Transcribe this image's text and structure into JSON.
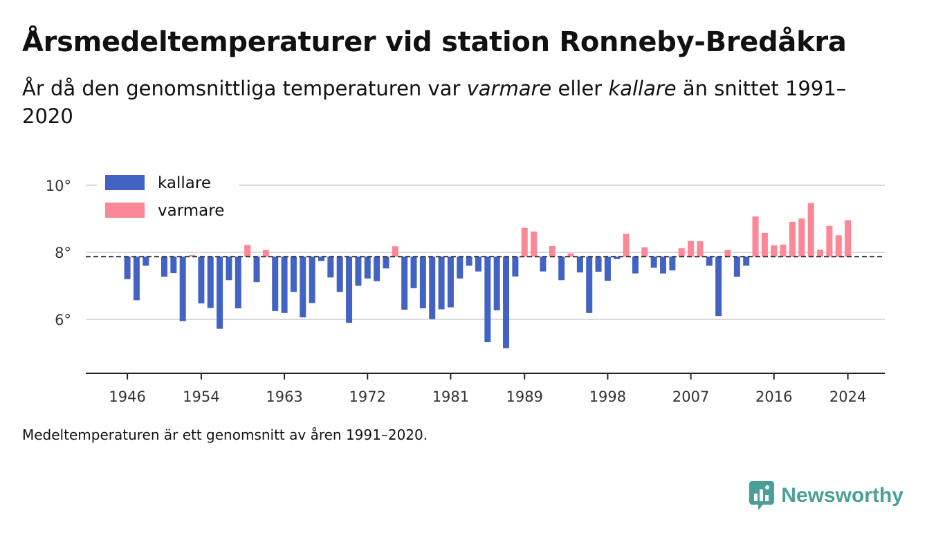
{
  "header": {
    "title": "Årsmedeltemperaturer vid station Ronneby-Bredåkra",
    "subtitle_part1": "År då den genomsnittliga temperaturen var ",
    "subtitle_em1": "varmare",
    "subtitle_part2": " eller ",
    "subtitle_em2": "kallare",
    "subtitle_part3": " än snittet 1991–2020"
  },
  "footnote": "Medeltemperaturen är ett genomsnitt av åren 1991–2020.",
  "brand": {
    "name": "Newsworthy",
    "icon": "bar-chart-speech-bubble-icon"
  },
  "colors": {
    "kallare": "#4263c4",
    "varmare": "#fc8796",
    "grid": "#d9d9d9",
    "brand": "#4a9f96"
  },
  "chart_data": {
    "type": "bar",
    "title": "Årsmedeltemperaturer vid station Ronneby-Bredåkra",
    "xlabel": "",
    "ylabel": "",
    "baseline": 7.87,
    "baseline_style": "dashed",
    "ylim": [
      4.5,
      10
    ],
    "yticks": [
      6,
      8,
      10
    ],
    "ytick_labels": [
      "6°",
      "8°",
      "10°"
    ],
    "xlim": [
      1941.5,
      2028
    ],
    "xticks": [
      1946,
      1954,
      1963,
      1972,
      1981,
      1989,
      1998,
      2007,
      2016,
      2024
    ],
    "grid": true,
    "legend": [
      {
        "key": "kallare",
        "label": "kallare"
      },
      {
        "key": "varmare",
        "label": "varmare"
      }
    ],
    "legend_position": "top-left",
    "years": [
      1946,
      1947,
      1948,
      1949,
      1950,
      1951,
      1952,
      1953,
      1954,
      1955,
      1956,
      1957,
      1958,
      1959,
      1960,
      1961,
      1962,
      1963,
      1964,
      1965,
      1966,
      1967,
      1968,
      1969,
      1970,
      1971,
      1972,
      1973,
      1974,
      1975,
      1976,
      1977,
      1978,
      1979,
      1980,
      1981,
      1982,
      1983,
      1984,
      1985,
      1986,
      1987,
      1988,
      1989,
      1990,
      1991,
      1992,
      1993,
      1994,
      1995,
      1996,
      1997,
      1998,
      1999,
      2000,
      2001,
      2002,
      2003,
      2004,
      2005,
      2006,
      2007,
      2008,
      2009,
      2010,
      2011,
      2012,
      2013,
      2014,
      2015,
      2016,
      2017,
      2018,
      2019,
      2020,
      2021,
      2022,
      2023,
      2024
    ],
    "values": [
      7.2,
      6.57,
      7.6,
      null,
      7.27,
      7.38,
      5.95,
      7.92,
      6.48,
      6.34,
      5.72,
      7.17,
      6.33,
      8.22,
      7.11,
      8.07,
      6.25,
      6.19,
      6.82,
      6.06,
      6.49,
      7.74,
      7.25,
      6.82,
      5.9,
      7.0,
      7.22,
      7.14,
      7.52,
      8.18,
      6.29,
      6.93,
      6.33,
      6.01,
      6.3,
      6.36,
      7.22,
      7.6,
      7.43,
      5.32,
      6.27,
      5.14,
      7.28,
      8.73,
      8.62,
      7.43,
      8.19,
      7.17,
      7.97,
      7.4,
      6.19,
      7.42,
      7.15,
      7.8,
      8.55,
      7.37,
      8.15,
      7.54,
      7.37,
      7.46,
      8.12,
      8.34,
      8.33,
      7.6,
      6.1,
      8.07,
      7.27,
      7.6,
      9.07,
      8.58,
      8.21,
      8.23,
      8.91,
      9.01,
      9.47,
      8.08,
      8.79,
      8.51,
      8.96
    ]
  }
}
